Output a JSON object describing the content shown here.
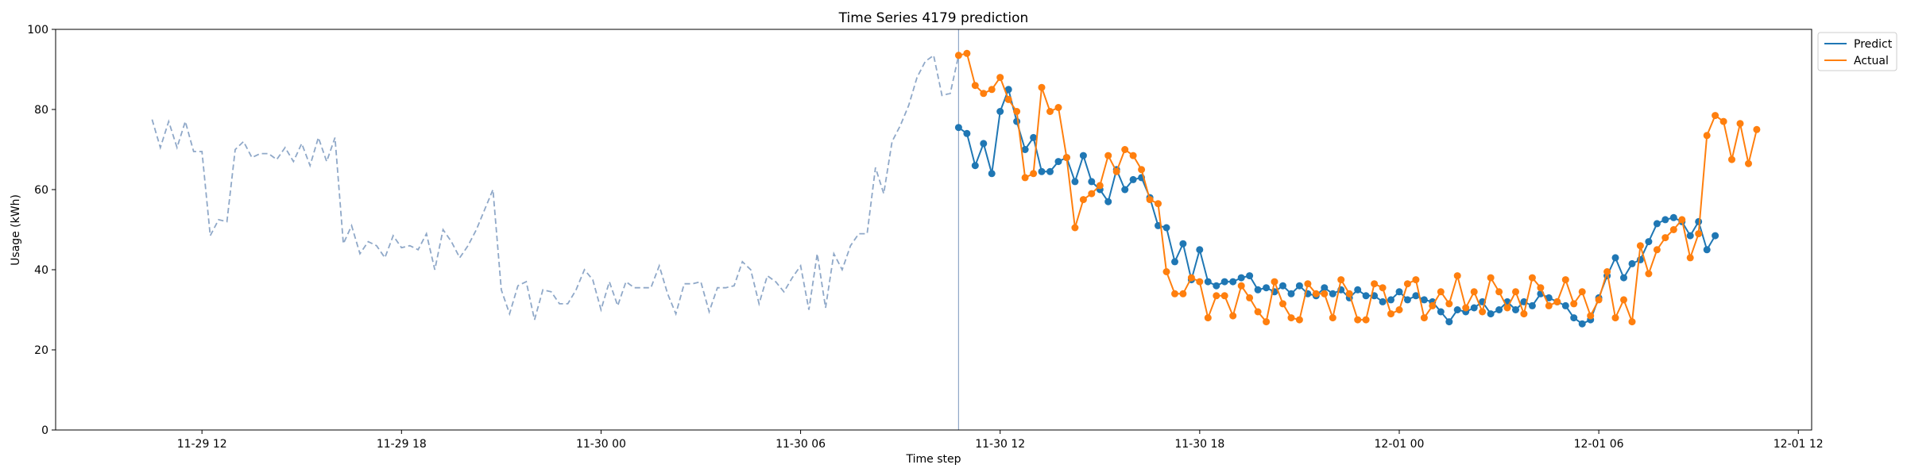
{
  "chart_data": {
    "type": "line",
    "title": "Time Series 4179 prediction",
    "xlabel": "Time step",
    "ylabel": "Usage (kWh)",
    "ylim": [
      0,
      100
    ],
    "xlim": [
      "2023-11-29 07:36",
      "2023-12-01 12:24"
    ],
    "yticks": [
      0,
      20,
      40,
      60,
      80,
      100
    ],
    "xticks": [
      {
        "t": "2023-11-29 12:00",
        "label": "11-29 12"
      },
      {
        "t": "2023-11-29 18:00",
        "label": "11-29 18"
      },
      {
        "t": "2023-11-30 00:00",
        "label": "11-30 00"
      },
      {
        "t": "2023-11-30 06:00",
        "label": "11-30 06"
      },
      {
        "t": "2023-11-30 12:00",
        "label": "11-30 12"
      },
      {
        "t": "2023-11-30 18:00",
        "label": "11-30 18"
      },
      {
        "t": "2023-12-01 00:00",
        "label": "12-01 00"
      },
      {
        "t": "2023-12-01 06:00",
        "label": "12-01 06"
      },
      {
        "t": "2023-12-01 12:00",
        "label": "12-01 12"
      }
    ],
    "grid": false,
    "legend_position": "outside-top-right",
    "forecast_start": "2023-11-30 10:45",
    "step_minutes": 15,
    "colors": {
      "history": "#8fa8c8",
      "predict": "#1f77b4",
      "actual": "#ff7f0e",
      "divider": "#8fa8c8"
    },
    "history": {
      "start": "2023-11-29 10:30",
      "values": [
        77.5,
        70.5,
        77,
        70.5,
        77,
        69.5,
        69.5,
        48.5,
        52.5,
        52,
        70,
        72,
        68,
        69,
        69,
        67.5,
        70.5,
        67,
        71.5,
        66,
        73,
        67,
        73,
        46.5,
        51,
        44,
        47,
        46,
        43,
        48.5,
        45.5,
        46,
        45,
        49,
        40,
        50,
        47,
        43,
        46,
        50,
        55,
        60,
        35,
        29,
        36,
        37,
        27.5,
        35,
        34.5,
        31.5,
        31.5,
        35,
        40,
        37.5,
        30,
        37,
        31,
        37,
        35.5,
        35.5,
        35.5,
        41,
        34,
        29,
        36.5,
        36.5,
        37,
        29.5,
        35.5,
        35.5,
        36,
        42,
        40,
        31.5,
        38.5,
        37,
        34.5,
        38,
        41,
        30,
        44,
        30.5,
        44,
        40,
        46,
        49,
        49,
        65.5,
        59,
        72,
        76,
        81,
        88,
        92,
        93.5,
        83.5,
        84,
        93.5
      ]
    },
    "series": [
      {
        "name": "Predict",
        "start": "2023-11-30 10:45",
        "values": [
          75.5,
          74,
          66,
          71.5,
          64,
          79.5,
          85,
          77,
          70,
          73,
          64.5,
          64.5,
          67,
          68,
          62,
          68.5,
          62,
          60,
          57,
          65,
          60,
          62.5,
          63,
          58,
          51,
          50.5,
          42,
          46.5,
          37.5,
          45,
          37,
          36,
          37,
          37,
          38,
          38.5,
          35,
          35.5,
          34.5,
          36,
          34,
          36,
          34,
          33.5,
          35.5,
          34,
          35,
          33,
          35,
          33.5,
          33.5,
          32,
          32.5,
          34.5,
          32.5,
          33.5,
          32.5,
          32,
          29.5,
          27,
          30,
          29.5,
          30.5,
          32,
          29,
          30,
          32,
          30,
          32,
          31,
          34,
          33,
          32,
          31,
          28,
          26.5,
          27.5,
          33,
          38.5,
          43,
          38,
          41.5,
          42.5,
          47,
          51.5,
          52.5,
          53,
          52,
          48.5,
          52,
          45,
          48.5
        ]
      },
      {
        "name": "Actual",
        "start": "2023-11-30 10:45",
        "values": [
          93.5,
          94,
          86,
          84,
          85,
          88,
          82.5,
          79.5,
          63,
          64,
          85.5,
          79.5,
          80.5,
          68,
          50.5,
          57.5,
          59,
          61,
          68.5,
          64.5,
          70,
          68.5,
          65,
          57.5,
          56.5,
          39.5,
          34,
          34,
          38,
          37,
          28,
          33.5,
          33.5,
          28.5,
          36,
          33,
          29.5,
          27,
          37,
          31.5,
          28,
          27.5,
          36.5,
          34,
          34,
          28,
          37.5,
          34,
          27.5,
          27.5,
          36.5,
          35.5,
          29,
          30,
          36.5,
          37.5,
          28,
          31,
          34.5,
          31.5,
          38.5,
          30.5,
          34.5,
          29.5,
          38,
          34.5,
          30.5,
          34.5,
          29,
          38,
          35.5,
          31,
          32,
          37.5,
          31.5,
          34.5,
          28.5,
          32.5,
          39.5,
          28,
          32.5,
          27,
          46,
          39,
          45,
          48,
          50,
          52.5,
          43,
          49,
          73.5,
          78.5,
          77,
          67.5,
          76.5,
          66.5,
          75
        ]
      }
    ]
  }
}
